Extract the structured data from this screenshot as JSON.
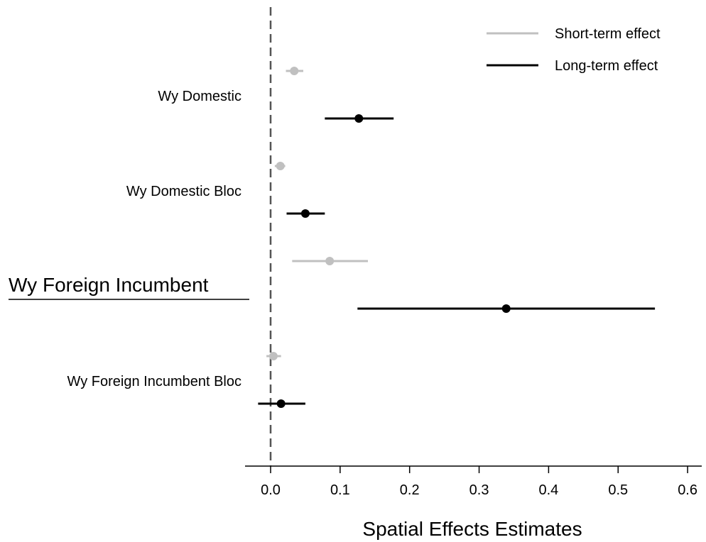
{
  "chart_data": {
    "type": "scatter",
    "subtype": "coefficient-plot",
    "title": "",
    "xlabel": "Spatial Effects Estimates",
    "ylabel": "",
    "xlim": [
      -0.038,
      0.622
    ],
    "x_ticks": [
      0.0,
      0.1,
      0.2,
      0.3,
      0.4,
      0.5,
      0.6
    ],
    "x_tick_labels": [
      "0.0",
      "0.1",
      "0.2",
      "0.3",
      "0.4",
      "0.5",
      "0.6"
    ],
    "reference_line": {
      "x": 0,
      "style": "dashed",
      "color": "#555555"
    },
    "grid": false,
    "legend": {
      "placement": "top-right",
      "entries": [
        {
          "label": "Short-term effect",
          "color": "#c0c0c0"
        },
        {
          "label": "Long-term effect",
          "color": "#000000"
        }
      ]
    },
    "categories": [
      {
        "label": "Wy Domestic",
        "emphasis": false
      },
      {
        "label": "Wy Domestic Bloc",
        "emphasis": false
      },
      {
        "label": "Wy Foreign Incumbent",
        "emphasis": true
      },
      {
        "label": "Wy Foreign Incumbent Bloc",
        "emphasis": false
      }
    ],
    "series": [
      {
        "name": "Short-term effect",
        "color": "#c0c0c0",
        "points": [
          {
            "estimate": 0.034,
            "lower": 0.022,
            "upper": 0.047
          },
          {
            "estimate": 0.014,
            "lower": 0.006,
            "upper": 0.021
          },
          {
            "estimate": 0.085,
            "lower": 0.031,
            "upper": 0.14
          },
          {
            "estimate": 0.004,
            "lower": -0.006,
            "upper": 0.015
          }
        ]
      },
      {
        "name": "Long-term effect",
        "color": "#000000",
        "points": [
          {
            "estimate": 0.127,
            "lower": 0.078,
            "upper": 0.177
          },
          {
            "estimate": 0.05,
            "lower": 0.023,
            "upper": 0.078
          },
          {
            "estimate": 0.339,
            "lower": 0.125,
            "upper": 0.553
          },
          {
            "estimate": 0.015,
            "lower": -0.018,
            "upper": 0.05
          }
        ]
      }
    ]
  }
}
